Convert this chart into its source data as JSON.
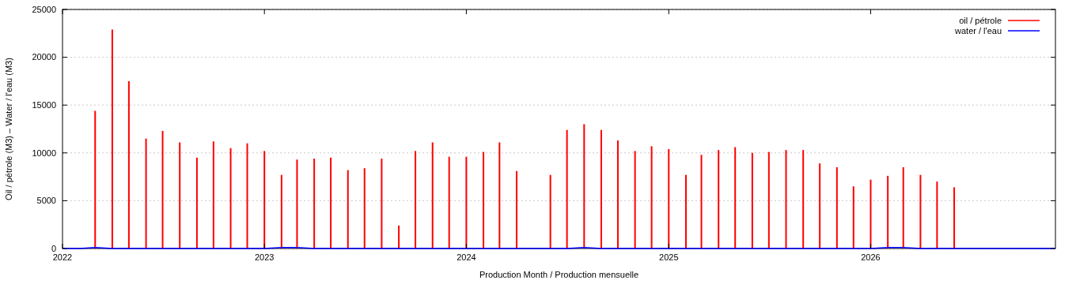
{
  "chart_data": {
    "type": "bar",
    "xlabel": "Production Month / Production mensuelle",
    "ylabel": "Oil / pétrole (M3)  –  Water / l'eau (M3)",
    "x": [
      "2022-01",
      "2022-02",
      "2022-03",
      "2022-04",
      "2022-05",
      "2022-06",
      "2022-07",
      "2022-08",
      "2022-09",
      "2022-10",
      "2022-11",
      "2022-12",
      "2023-01",
      "2023-02",
      "2023-03",
      "2023-04",
      "2023-05",
      "2023-06",
      "2023-07",
      "2023-08",
      "2023-09",
      "2023-10",
      "2023-11",
      "2023-12",
      "2024-01",
      "2024-02",
      "2024-03",
      "2024-04",
      "2024-05",
      "2024-06",
      "2024-07",
      "2024-08",
      "2024-09",
      "2024-10",
      "2024-11",
      "2024-12",
      "2025-01",
      "2025-02",
      "2025-03",
      "2025-04",
      "2025-05",
      "2025-06",
      "2025-07",
      "2025-08",
      "2025-09",
      "2025-10",
      "2025-11",
      "2025-12",
      "2026-01",
      "2026-02",
      "2026-03",
      "2026-04",
      "2026-05",
      "2026-06",
      "2026-07",
      "2026-08",
      "2026-09",
      "2026-10",
      "2026-11",
      "2026-12"
    ],
    "series": [
      {
        "name": "oil / pétrole",
        "color": "#ff0000",
        "values": [
          null,
          null,
          14400,
          22900,
          17500,
          11500,
          12300,
          11100,
          9500,
          11200,
          10500,
          11000,
          10200,
          7700,
          9300,
          9400,
          9500,
          8200,
          8400,
          9400,
          2400,
          10200,
          11100,
          9600,
          9600,
          10100,
          11100,
          8100,
          null,
          7700,
          12400,
          13000,
          12400,
          11300,
          10200,
          10700,
          10400,
          7700,
          9800,
          10300,
          10600,
          10000,
          10100,
          10300,
          10300,
          8900,
          8500,
          6500,
          7200,
          7600,
          8500,
          7700,
          7000,
          6400,
          null,
          null,
          null,
          null,
          null,
          null
        ]
      },
      {
        "name": "water / l'eau",
        "type": "line",
        "color": "#0000ff",
        "values": [
          0,
          0,
          100,
          0,
          0,
          0,
          0,
          0,
          0,
          0,
          0,
          0,
          0,
          100,
          100,
          0,
          0,
          0,
          0,
          0,
          0,
          0,
          0,
          0,
          0,
          0,
          0,
          0,
          0,
          0,
          0,
          100,
          0,
          0,
          0,
          0,
          0,
          0,
          0,
          0,
          0,
          0,
          0,
          0,
          0,
          0,
          0,
          0,
          0,
          100,
          100,
          0,
          0,
          0,
          0,
          0,
          0,
          0,
          0,
          0
        ]
      }
    ],
    "xlim": [
      "2022-01",
      "2026-12"
    ],
    "xticks": [
      {
        "value": "2022-01",
        "label": "2022"
      },
      {
        "value": "2023-01",
        "label": "2023"
      },
      {
        "value": "2024-01",
        "label": "2024"
      },
      {
        "value": "2025-01",
        "label": "2025"
      },
      {
        "value": "2026-01",
        "label": "2026"
      }
    ],
    "ylim": [
      0,
      25000
    ],
    "yticks": [
      0,
      5000,
      10000,
      15000,
      20000,
      25000
    ],
    "grid": "y",
    "legend": "top right"
  }
}
